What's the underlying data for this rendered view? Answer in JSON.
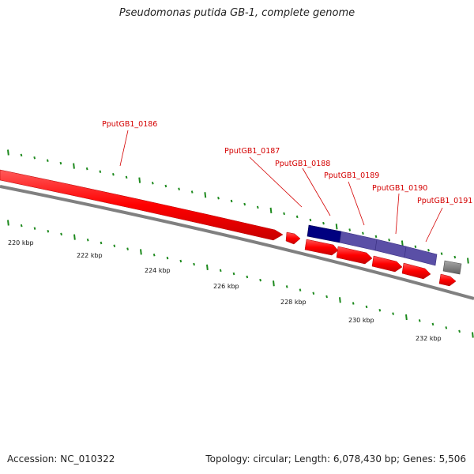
{
  "title": "Pseudomonas putida GB-1, complete genome",
  "footer": {
    "accession": "Accession: NC_010322",
    "stats": "Topology: circular; Length: 6,078,430 bp; Genes: 5,506"
  },
  "colors": {
    "forward_gene": "#ff0000",
    "reverse_gene": "#ff0000",
    "gene_highlight": "#000080",
    "gene_selected": "#5a4fa6",
    "gene_grey": "#808080",
    "backbone": "#808080",
    "tick": "#1e8a1e",
    "label": "#d40000"
  },
  "scale_labels": [
    "220 kbp",
    "222 kbp",
    "224 kbp",
    "226 kbp",
    "228 kbp",
    "230 kbp",
    "232 kbp"
  ],
  "genes": [
    {
      "name": "PputGB1_0186"
    },
    {
      "name": "PputGB1_0187"
    },
    {
      "name": "PputGB1_0188"
    },
    {
      "name": "PputGB1_0189"
    },
    {
      "name": "PputGB1_0190"
    },
    {
      "name": "PputGB1_0191"
    }
  ]
}
